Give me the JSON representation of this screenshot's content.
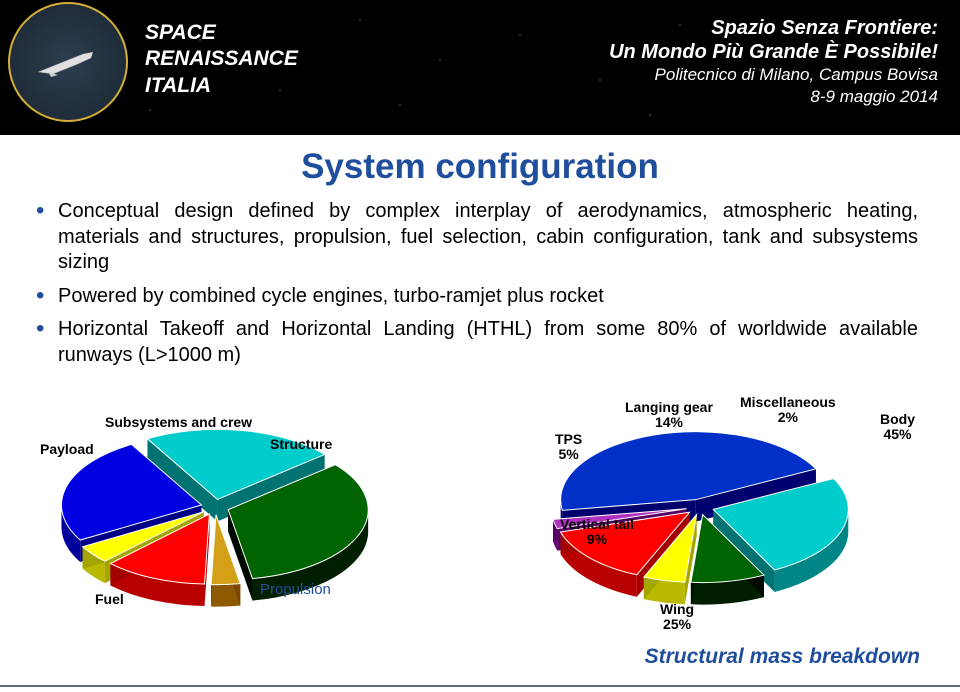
{
  "header": {
    "org_line1": "SPACE",
    "org_line2": "RENAISSANCE",
    "org_line3": "ITALIA",
    "conf_line1": "Spazio Senza Frontiere:",
    "conf_line2": "Un Mondo Più Grande È Possibile!",
    "conf_line3": "Politecnico di Milano, Campus Bovisa",
    "conf_line4": "8-9 maggio 2014"
  },
  "title": "System configuration",
  "bullets": {
    "b1": "Conceptual design defined by complex interplay of aerodynamics, atmospheric heating, materials and structures, propulsion, fuel selection, cabin configuration, tank and subsystems sizing",
    "b2": "Powered by combined cycle engines, turbo-ramjet plus rocket",
    "b3": "Horizontal Takeoff and Horizontal Landing (HTHL) from some 80% of worldwide available runways (L>1000 m)"
  },
  "left_chart": {
    "type": "pie-3d",
    "labels": {
      "payload": "Payload",
      "subsystems": "Subsystems and crew",
      "structure": "Structure",
      "fuel": "Fuel",
      "propulsion": "Propulsion"
    },
    "slices": [
      {
        "name": "payload",
        "color": "#d4a017",
        "start": 170,
        "end": 182
      },
      {
        "name": "subsystems",
        "color": "#ff0000",
        "start": 182,
        "end": 225
      },
      {
        "name": "structure",
        "color": "#ffff00",
        "start": 225,
        "end": 240
      },
      {
        "name": "structure2",
        "color": "#0000e0",
        "start": 240,
        "end": 330
      },
      {
        "name": "propulsion",
        "color": "#00cccc",
        "start": 330,
        "end": 50
      },
      {
        "name": "fuel",
        "color": "#006400",
        "start": 50,
        "end": 170
      }
    ],
    "side_darken": "#00000055"
  },
  "right_chart": {
    "type": "pie-3d",
    "labels": {
      "langing": "Langing gear",
      "langing_pct": "14%",
      "misc": "Miscellaneous",
      "misc_pct": "2%",
      "body": "Body",
      "body_pct": "45%",
      "tps": "TPS",
      "tps_pct": "5%",
      "vtail": "Vertical tail",
      "vtail_pct": "9%",
      "wing": "Wing",
      "wing_pct": "25%"
    },
    "slices": [
      {
        "name": "tps",
        "color": "#ffff00",
        "start": 185,
        "end": 203
      },
      {
        "name": "langing",
        "color": "#ff0000",
        "start": 203,
        "end": 253
      },
      {
        "name": "misc",
        "color": "#b030c0",
        "start": 253,
        "end": 261
      },
      {
        "name": "body",
        "color": "#0030c8",
        "start": 261,
        "end": 63
      },
      {
        "name": "wing",
        "color": "#00cccc",
        "start": 63,
        "end": 153
      },
      {
        "name": "vtail",
        "color": "#006400",
        "start": 153,
        "end": 185
      }
    ],
    "side_darken": "#00000055"
  },
  "caption": "Structural mass breakdown",
  "colors": {
    "title": "#1f4e9c",
    "bullet_marker": "#1f4e9c",
    "header_bg": "#000000",
    "text": "#000000"
  }
}
